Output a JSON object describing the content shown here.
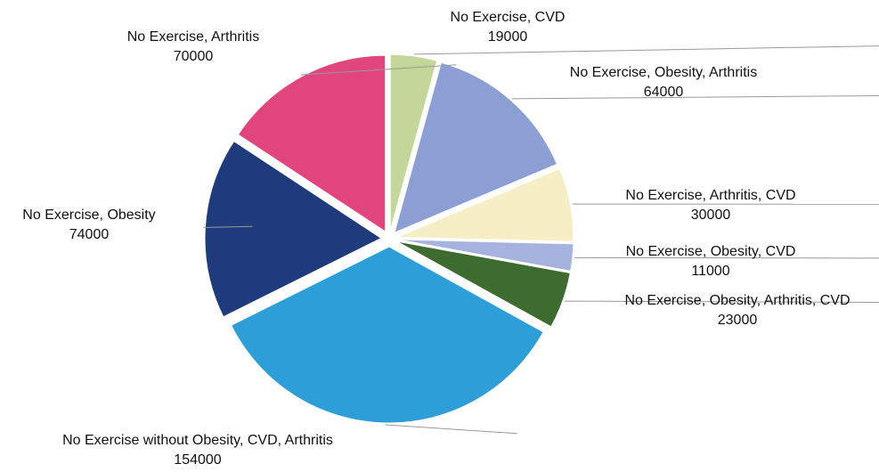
{
  "chart_data": {
    "type": "pie",
    "categories": [
      "No Exercise, CVD",
      "No Exercise, Obesity, Arthritis",
      "No Exercise, Arthritis, CVD",
      "No Exercise, Obesity, CVD",
      "No Exercise, Obesity, Arthritis, CVD",
      "No Exercise without Obesity, CVD, Arthritis",
      "No Exercise, Obesity",
      "No Exercise, Arthritis"
    ],
    "values": [
      19000,
      64000,
      30000,
      11000,
      23000,
      154000,
      74000,
      70000
    ],
    "colors": [
      "#c4d79b",
      "#8b9fd4",
      "#f6efc6",
      "#a7b3df",
      "#3e6b2f",
      "#2e9ed8",
      "#1f3b7c",
      "#e0467b"
    ]
  }
}
